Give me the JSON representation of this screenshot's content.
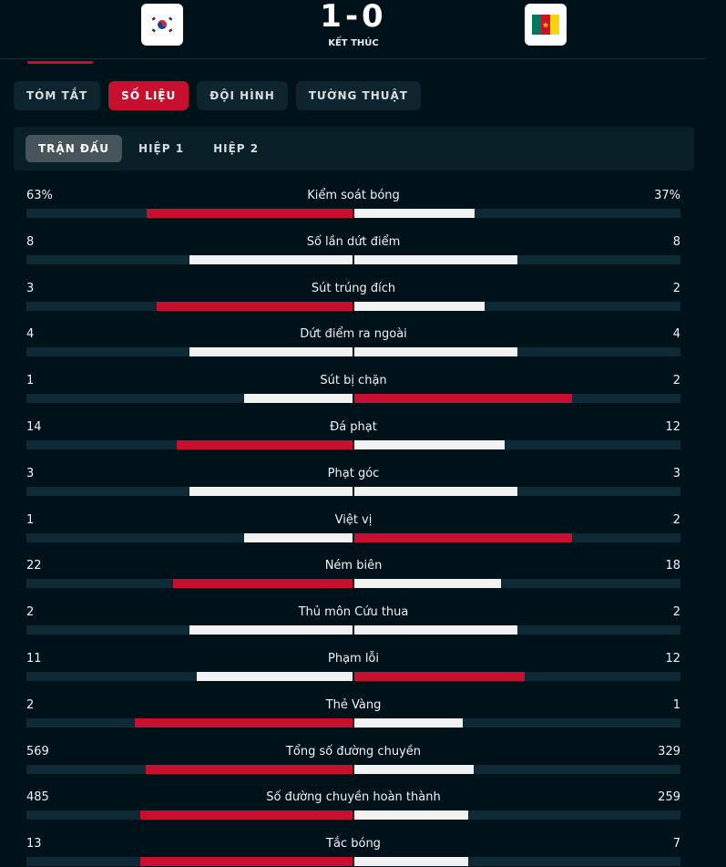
{
  "header": {
    "home_flag_icon": "south-korea-flag-icon",
    "away_flag_icon": "cameroon-flag-icon",
    "score": "1-0",
    "status": "KẾT THÚC"
  },
  "tabs": [
    {
      "label": "TÓM TẮT",
      "active": false
    },
    {
      "label": "SỐ LIỆU",
      "active": true
    },
    {
      "label": "ĐỘI HÌNH",
      "active": false
    },
    {
      "label": "TƯỜNG THUẬT",
      "active": false
    }
  ],
  "period_tabs": [
    {
      "label": "TRẬN ĐẤU",
      "active": true
    },
    {
      "label": "HIỆP 1",
      "active": false
    },
    {
      "label": "HIỆP 2",
      "active": false
    }
  ],
  "colors": {
    "accent": "#c8102e",
    "background": "#001219",
    "bar_track": "#0e2a36"
  },
  "stats": [
    {
      "label": "Kiểm soát bóng",
      "home": "63%",
      "away": "37%",
      "home_value": 63,
      "away_value": 37
    },
    {
      "label": "Số lần dứt điểm",
      "home": "8",
      "away": "8",
      "home_value": 8,
      "away_value": 8
    },
    {
      "label": "Sút trúng đích",
      "home": "3",
      "away": "2",
      "home_value": 3,
      "away_value": 2
    },
    {
      "label": "Dứt điểm ra ngoài",
      "home": "4",
      "away": "4",
      "home_value": 4,
      "away_value": 4
    },
    {
      "label": "Sút bị chặn",
      "home": "1",
      "away": "2",
      "home_value": 1,
      "away_value": 2
    },
    {
      "label": "Đá phạt",
      "home": "14",
      "away": "12",
      "home_value": 14,
      "away_value": 12
    },
    {
      "label": "Phạt góc",
      "home": "3",
      "away": "3",
      "home_value": 3,
      "away_value": 3
    },
    {
      "label": "Việt vị",
      "home": "1",
      "away": "2",
      "home_value": 1,
      "away_value": 2
    },
    {
      "label": "Ném biên",
      "home": "22",
      "away": "18",
      "home_value": 22,
      "away_value": 18
    },
    {
      "label": "Thủ môn Cứu thua",
      "home": "2",
      "away": "2",
      "home_value": 2,
      "away_value": 2
    },
    {
      "label": "Phạm lỗi",
      "home": "11",
      "away": "12",
      "home_value": 11,
      "away_value": 12
    },
    {
      "label": "Thẻ Vàng",
      "home": "2",
      "away": "1",
      "home_value": 2,
      "away_value": 1
    },
    {
      "label": "Tổng số đường chuyền",
      "home": "569",
      "away": "329",
      "home_value": 569,
      "away_value": 329
    },
    {
      "label": "Số đường chuyền hoàn thành",
      "home": "485",
      "away": "259",
      "home_value": 485,
      "away_value": 259
    },
    {
      "label": "Tắc bóng",
      "home": "13",
      "away": "7",
      "home_value": 13,
      "away_value": 7
    }
  ]
}
